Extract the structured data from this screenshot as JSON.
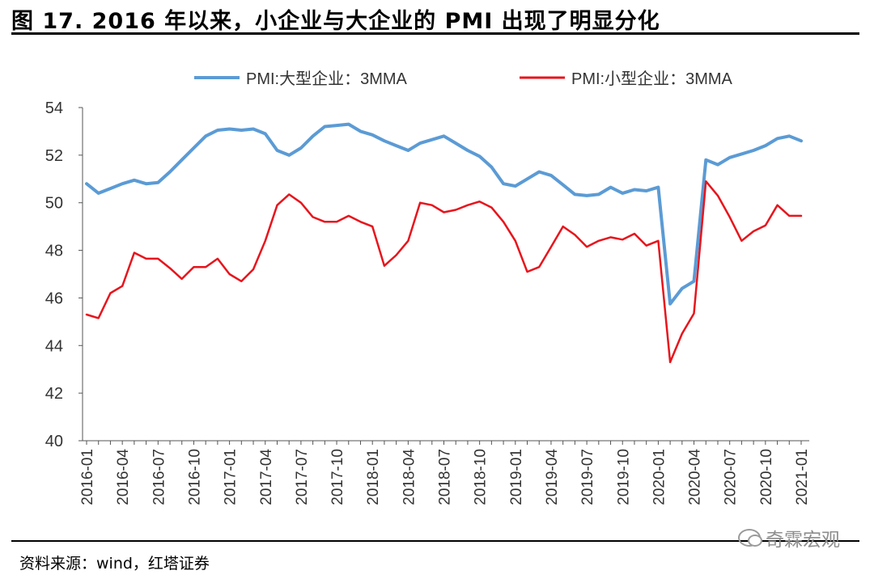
{
  "figure_title": "图 17. 2016 年以来，小企业与大企业的 PMI 出现了明显分化",
  "source": "资料来源：wind，红塔证券",
  "watermark": "奇霖宏观",
  "colors": {
    "large": "#5B9BD5",
    "small": "#E8141C",
    "axis": "#333333"
  },
  "chart_data": {
    "type": "line",
    "title": "",
    "xlabel": "",
    "ylabel": "",
    "ylim": [
      40,
      54
    ],
    "yticks": [
      40,
      42,
      44,
      46,
      48,
      50,
      52,
      54
    ],
    "grid": false,
    "legend_position": "top",
    "x": [
      "2016-01",
      "2016-02",
      "2016-03",
      "2016-04",
      "2016-05",
      "2016-06",
      "2016-07",
      "2016-08",
      "2016-09",
      "2016-10",
      "2016-11",
      "2016-12",
      "2017-01",
      "2017-02",
      "2017-03",
      "2017-04",
      "2017-05",
      "2017-06",
      "2017-07",
      "2017-08",
      "2017-09",
      "2017-10",
      "2017-11",
      "2017-12",
      "2018-01",
      "2018-02",
      "2018-03",
      "2018-04",
      "2018-05",
      "2018-06",
      "2018-07",
      "2018-08",
      "2018-09",
      "2018-10",
      "2018-11",
      "2018-12",
      "2019-01",
      "2019-02",
      "2019-03",
      "2019-04",
      "2019-05",
      "2019-06",
      "2019-07",
      "2019-08",
      "2019-09",
      "2019-10",
      "2019-11",
      "2019-12",
      "2020-01",
      "2020-02",
      "2020-03",
      "2020-04",
      "2020-05",
      "2020-06",
      "2020-07",
      "2020-08",
      "2020-09",
      "2020-10",
      "2020-11",
      "2020-12",
      "2021-01"
    ],
    "tick_labels": [
      "2016-01",
      "2016-04",
      "2016-07",
      "2016-10",
      "2017-01",
      "2017-04",
      "2017-07",
      "2017-10",
      "2018-01",
      "2018-04",
      "2018-07",
      "2018-10",
      "2019-01",
      "2019-04",
      "2019-07",
      "2019-10",
      "2020-01",
      "2020-04",
      "2020-07",
      "2020-10",
      "2021-01"
    ],
    "series": [
      {
        "name": "PMI:大型企业：3MMA",
        "color": "#5B9BD5",
        "values": [
          50.8,
          50.4,
          50.6,
          50.8,
          50.95,
          50.8,
          50.85,
          51.3,
          51.8,
          52.3,
          52.8,
          53.05,
          53.1,
          53.05,
          53.1,
          52.9,
          52.2,
          52.0,
          52.3,
          52.8,
          53.2,
          53.25,
          53.3,
          53.0,
          52.85,
          52.6,
          52.4,
          52.2,
          52.5,
          52.65,
          52.8,
          52.5,
          52.2,
          51.95,
          51.5,
          50.8,
          50.7,
          51.0,
          51.3,
          51.15,
          50.75,
          50.35,
          50.3,
          50.35,
          50.65,
          50.4,
          50.55,
          50.5,
          50.65,
          45.75,
          46.4,
          46.7,
          51.8,
          51.6,
          51.9,
          52.05,
          52.2,
          52.4,
          52.7,
          52.8,
          52.6
        ]
      },
      {
        "name": "PMI:小型企业：3MMA",
        "color": "#E8141C",
        "values": [
          45.3,
          45.15,
          46.2,
          46.5,
          47.9,
          47.65,
          47.65,
          47.25,
          46.8,
          47.3,
          47.3,
          47.65,
          47.0,
          46.7,
          47.2,
          48.4,
          49.9,
          50.35,
          50.0,
          49.4,
          49.2,
          49.2,
          49.45,
          49.2,
          49.0,
          47.35,
          47.8,
          48.4,
          50.0,
          49.9,
          49.6,
          49.7,
          49.9,
          50.05,
          49.8,
          49.2,
          48.4,
          47.1,
          47.3,
          48.15,
          49.0,
          48.65,
          48.15,
          48.4,
          48.55,
          48.45,
          48.7,
          48.2,
          48.4,
          43.3,
          44.5,
          45.35,
          50.9,
          50.3,
          49.4,
          48.4,
          48.8,
          49.05,
          49.9,
          49.45,
          49.45
        ]
      }
    ]
  }
}
